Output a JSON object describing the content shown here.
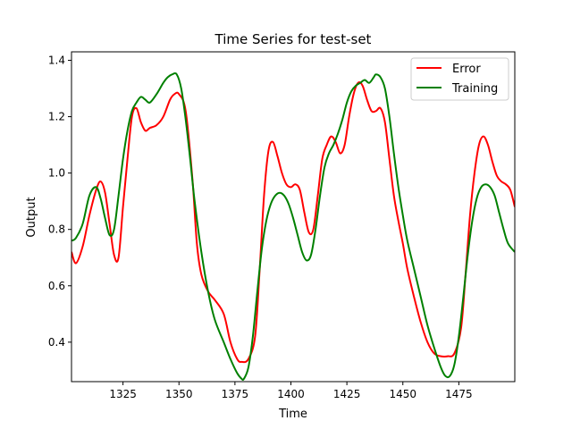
{
  "chart_data": {
    "type": "line",
    "title": "Time Series for test-set",
    "xlabel": "Time",
    "ylabel": "Output",
    "xlim": [
      1302,
      1500
    ],
    "ylim": [
      0.26,
      1.43
    ],
    "xticks": [
      1325,
      1350,
      1375,
      1400,
      1425,
      1450,
      1475
    ],
    "yticks": [
      0.4,
      0.6,
      0.8,
      1.0,
      1.2,
      1.4
    ],
    "xtick_labels": [
      "1325",
      "1350",
      "1375",
      "1400",
      "1425",
      "1450",
      "1475"
    ],
    "ytick_labels": [
      "0.4",
      "0.6",
      "0.8",
      "1.0",
      "1.2",
      "1.4"
    ],
    "grid": false,
    "legend_position": "top-right",
    "series": [
      {
        "name": "Error",
        "color": "#ff0000",
        "x": [
          1302,
          1304,
          1307,
          1310,
          1313,
          1315,
          1317,
          1319,
          1321,
          1323,
          1325,
          1327,
          1329,
          1331,
          1333,
          1335,
          1337,
          1340,
          1343,
          1346,
          1348,
          1350,
          1353,
          1356,
          1358,
          1360,
          1363,
          1366,
          1370,
          1373,
          1376,
          1378,
          1381,
          1384,
          1386,
          1388,
          1390,
          1392,
          1394,
          1396,
          1398,
          1400,
          1402,
          1404,
          1406,
          1408,
          1410,
          1412,
          1414,
          1416,
          1418,
          1420,
          1422,
          1424,
          1426,
          1428,
          1430,
          1432,
          1434,
          1436,
          1438,
          1440,
          1442,
          1444,
          1446,
          1448,
          1450,
          1452,
          1455,
          1458,
          1461,
          1464,
          1467,
          1470,
          1473,
          1476,
          1478,
          1480,
          1482,
          1484,
          1486,
          1488,
          1490,
          1492,
          1494,
          1496,
          1498,
          1500
        ],
        "y": [
          0.72,
          0.68,
          0.74,
          0.85,
          0.94,
          0.97,
          0.93,
          0.82,
          0.71,
          0.7,
          0.88,
          1.05,
          1.2,
          1.23,
          1.18,
          1.15,
          1.16,
          1.17,
          1.2,
          1.26,
          1.28,
          1.28,
          1.22,
          0.98,
          0.75,
          0.64,
          0.58,
          0.55,
          0.5,
          0.4,
          0.34,
          0.33,
          0.34,
          0.42,
          0.65,
          0.92,
          1.08,
          1.11,
          1.06,
          1.0,
          0.96,
          0.95,
          0.96,
          0.94,
          0.86,
          0.79,
          0.8,
          0.92,
          1.05,
          1.1,
          1.13,
          1.11,
          1.07,
          1.1,
          1.2,
          1.28,
          1.32,
          1.31,
          1.26,
          1.22,
          1.22,
          1.23,
          1.18,
          1.05,
          0.92,
          0.83,
          0.75,
          0.66,
          0.56,
          0.47,
          0.4,
          0.36,
          0.35,
          0.35,
          0.36,
          0.45,
          0.64,
          0.85,
          1.0,
          1.1,
          1.13,
          1.1,
          1.04,
          0.99,
          0.97,
          0.96,
          0.94,
          0.88
        ]
      },
      {
        "name": "Training",
        "color": "#008000",
        "x": [
          1302,
          1304,
          1307,
          1310,
          1313,
          1315,
          1317,
          1319,
          1321,
          1323,
          1325,
          1327,
          1329,
          1331,
          1333,
          1335,
          1337,
          1340,
          1343,
          1345,
          1347,
          1349,
          1351,
          1353,
          1355,
          1357,
          1360,
          1363,
          1366,
          1370,
          1373,
          1376,
          1378,
          1379,
          1381,
          1383,
          1385,
          1387,
          1389,
          1391,
          1393,
          1395,
          1397,
          1399,
          1401,
          1403,
          1405,
          1407,
          1409,
          1411,
          1413,
          1415,
          1417,
          1419,
          1421,
          1423,
          1425,
          1427,
          1429,
          1431,
          1433,
          1435,
          1437,
          1438,
          1440,
          1442,
          1444,
          1446,
          1448,
          1450,
          1452,
          1455,
          1458,
          1461,
          1464,
          1467,
          1469,
          1471,
          1473,
          1475,
          1477,
          1479,
          1481,
          1483,
          1485,
          1487,
          1489,
          1491,
          1493,
          1495,
          1497,
          1500
        ],
        "y": [
          0.76,
          0.77,
          0.82,
          0.92,
          0.95,
          0.91,
          0.84,
          0.78,
          0.8,
          0.92,
          1.05,
          1.15,
          1.22,
          1.25,
          1.27,
          1.26,
          1.25,
          1.28,
          1.32,
          1.34,
          1.35,
          1.35,
          1.3,
          1.19,
          1.05,
          0.9,
          0.72,
          0.58,
          0.48,
          0.4,
          0.34,
          0.29,
          0.27,
          0.27,
          0.31,
          0.42,
          0.58,
          0.73,
          0.83,
          0.89,
          0.92,
          0.93,
          0.92,
          0.89,
          0.84,
          0.78,
          0.72,
          0.69,
          0.71,
          0.8,
          0.92,
          1.02,
          1.07,
          1.1,
          1.14,
          1.19,
          1.25,
          1.29,
          1.31,
          1.32,
          1.33,
          1.32,
          1.34,
          1.35,
          1.34,
          1.3,
          1.2,
          1.07,
          0.95,
          0.85,
          0.76,
          0.66,
          0.56,
          0.46,
          0.38,
          0.31,
          0.28,
          0.28,
          0.32,
          0.42,
          0.56,
          0.71,
          0.83,
          0.91,
          0.95,
          0.96,
          0.95,
          0.92,
          0.86,
          0.8,
          0.75,
          0.72
        ]
      }
    ]
  }
}
